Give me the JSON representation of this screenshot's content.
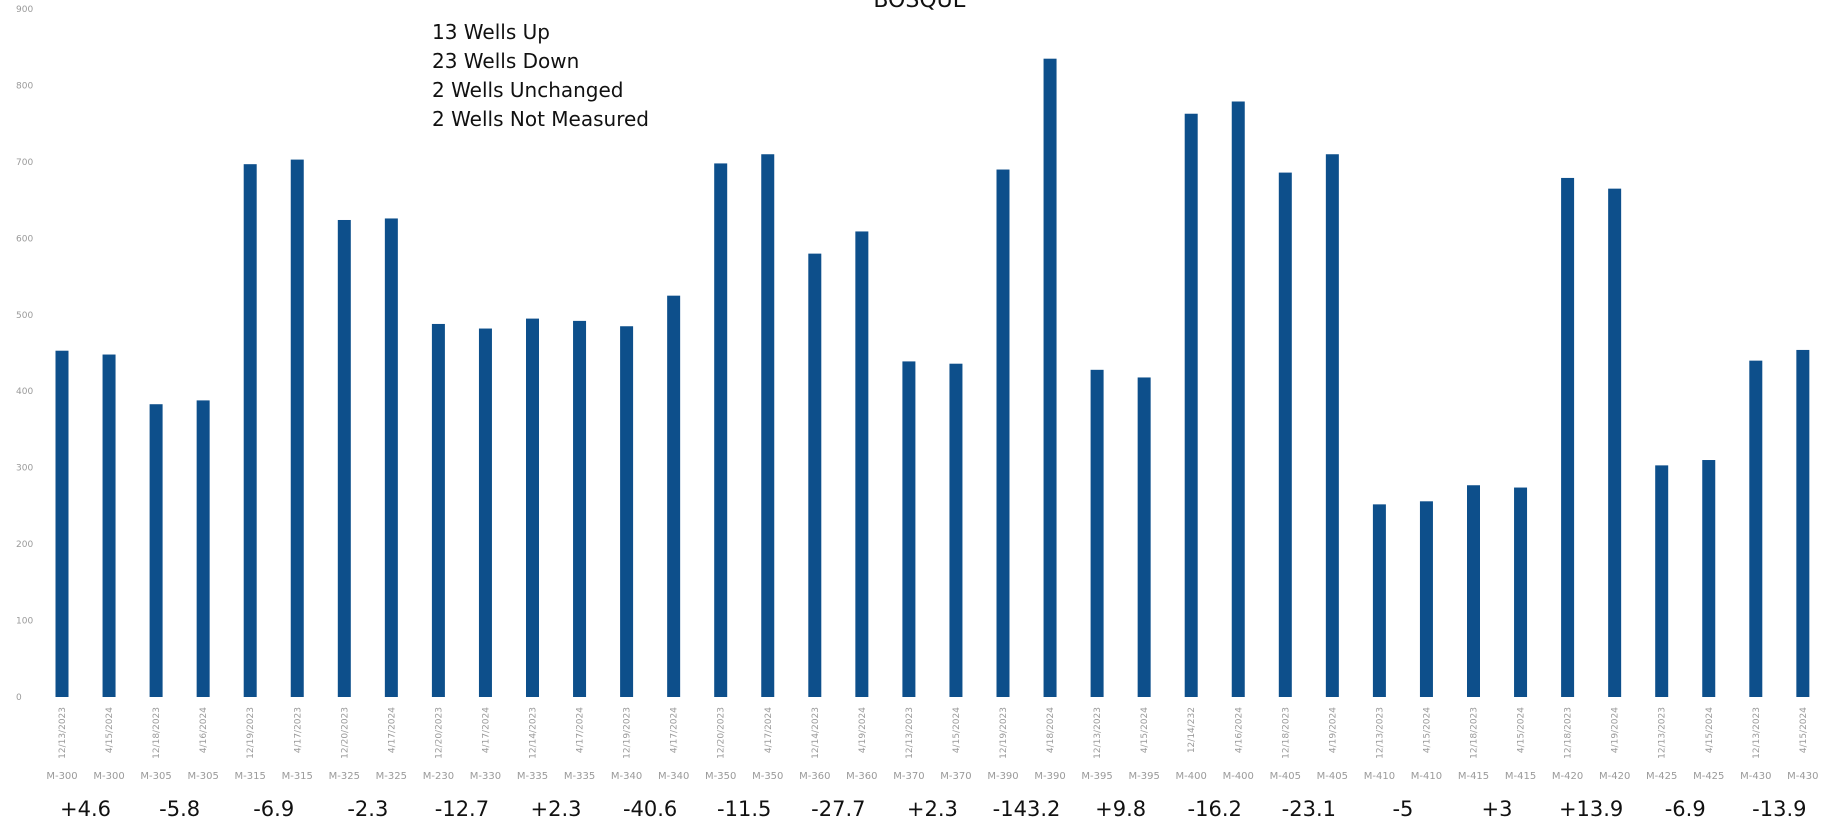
{
  "chart_data": {
    "type": "bar",
    "title": "BOSQUE",
    "summary": [
      "13 Wells Up",
      "23 Wells Down",
      "2 Wells Unchanged",
      "2 Wells Not Measured"
    ],
    "ylim": [
      0,
      900
    ],
    "yticks": [
      "0",
      "100",
      "200",
      "300",
      "400",
      "500",
      "600",
      "700",
      "800",
      "900"
    ],
    "grid": false,
    "bar_color": "#0d4f8b",
    "categories": [
      {
        "date": "12/13/2023",
        "well": "M-300"
      },
      {
        "date": "4/15/2024",
        "well": "M-300"
      },
      {
        "date": "12/18/2023",
        "well": "M-305"
      },
      {
        "date": "4/16/2024",
        "well": "M-305"
      },
      {
        "date": "12/19/2023",
        "well": "M-315"
      },
      {
        "date": "4/17/2023",
        "well": "M-315"
      },
      {
        "date": "12/20/2023",
        "well": "M-325"
      },
      {
        "date": "4/17/2024",
        "well": "M-325"
      },
      {
        "date": "12/20/2023",
        "well": "M-230"
      },
      {
        "date": "4/17/2024",
        "well": "M-330"
      },
      {
        "date": "12/14/2023",
        "well": "M-335"
      },
      {
        "date": "4/17/2024",
        "well": "M-335"
      },
      {
        "date": "12/19/2023",
        "well": "M-340"
      },
      {
        "date": "4/17/2024",
        "well": "M-340"
      },
      {
        "date": "12/20/2023",
        "well": "M-350"
      },
      {
        "date": "4/17/2024",
        "well": "M-350"
      },
      {
        "date": "12/14/2023",
        "well": "M-360"
      },
      {
        "date": "4/19/2024",
        "well": "M-360"
      },
      {
        "date": "12/13/2023",
        "well": "M-370"
      },
      {
        "date": "4/15/2024",
        "well": "M-370"
      },
      {
        "date": "12/19/2023",
        "well": "M-390"
      },
      {
        "date": "4/18/2024",
        "well": "M-390"
      },
      {
        "date": "12/13/2023",
        "well": "M-395"
      },
      {
        "date": "4/15/2024",
        "well": "M-395"
      },
      {
        "date": "12/14/232",
        "well": "M-400"
      },
      {
        "date": "4/16/2024",
        "well": "M-400"
      },
      {
        "date": "12/18/2023",
        "well": "M-405"
      },
      {
        "date": "4/19/2024",
        "well": "M-405"
      },
      {
        "date": "12/13/2023",
        "well": "M-410"
      },
      {
        "date": "4/15/2024",
        "well": "M-410"
      },
      {
        "date": "12/18/2023",
        "well": "M-415"
      },
      {
        "date": "4/15/2024",
        "well": "M-415"
      },
      {
        "date": "12/18/2023",
        "well": "M-420"
      },
      {
        "date": "4/19/2024",
        "well": "M-420"
      },
      {
        "date": "12/13/2023",
        "well": "M-425"
      },
      {
        "date": "4/15/2024",
        "well": "M-425"
      },
      {
        "date": "12/13/2023",
        "well": "M-430"
      },
      {
        "date": "4/15/2024",
        "well": "M-430"
      }
    ],
    "values": [
      453,
      448,
      383,
      388,
      697,
      703,
      624,
      626,
      488,
      482,
      495,
      492,
      485,
      525,
      698,
      710,
      580,
      609,
      439,
      436,
      690,
      835,
      428,
      418,
      763,
      779,
      686,
      710,
      252,
      256,
      277,
      274,
      679,
      665,
      303,
      310,
      440,
      454
    ],
    "changes": [
      "+4.6",
      "-5.8",
      "-6.9",
      "-2.3",
      "-12.7",
      "+2.3",
      "-40.6",
      "-11.5",
      "-27.7",
      "+2.3",
      "-143.2",
      "+9.8",
      "-16.2",
      "-23.1",
      "-5",
      "+3",
      "+13.9",
      "-6.9",
      "-13.9"
    ]
  }
}
